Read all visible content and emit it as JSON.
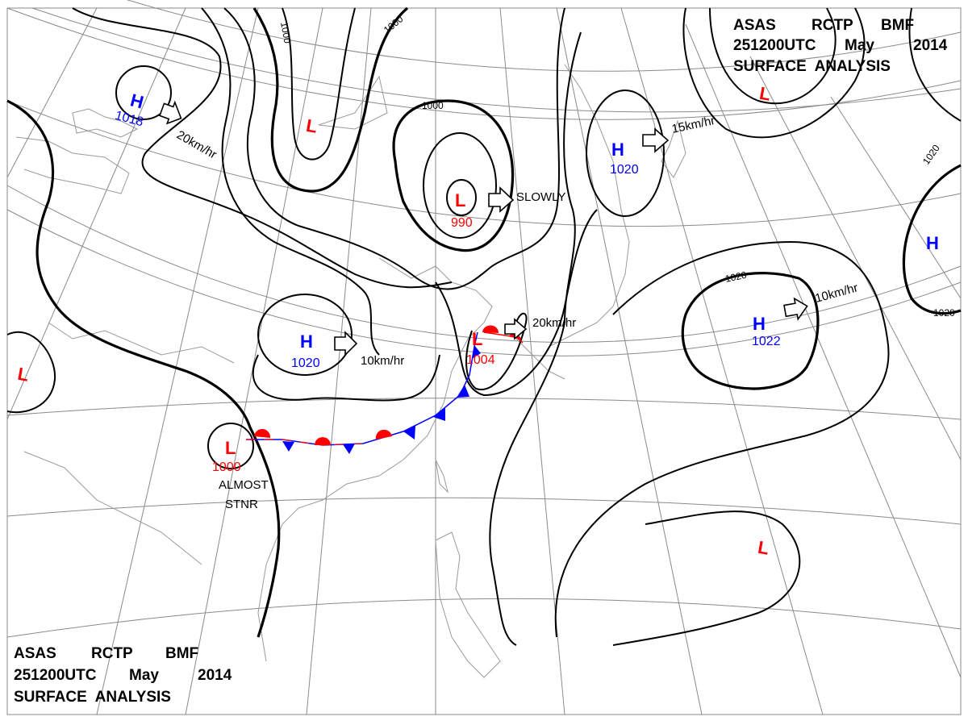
{
  "header_top_right": {
    "line1": [
      "ASAS",
      "RCTP",
      "BMF"
    ],
    "line2": [
      "251200UTC",
      "May",
      "2014"
    ],
    "line3": "SURFACE  ANALYSIS"
  },
  "header_bottom_left": {
    "line1": [
      "ASAS",
      "RCTP",
      "BMF"
    ],
    "line2": [
      "251200UTC",
      "May",
      "2014"
    ],
    "line3": "SURFACE  ANALYSIS"
  },
  "colors": {
    "high": "#0000ff",
    "low": "#ff0000",
    "isobar": "#000000",
    "grid": "#8a8a8a",
    "cold_front": "#0000ff",
    "warm_front": "#ff0000"
  },
  "pressure_centers": [
    {
      "type": "H",
      "value": "1018"
    },
    {
      "type": "L",
      "value": ""
    },
    {
      "type": "L",
      "value": "990"
    },
    {
      "type": "H",
      "value": "1020"
    },
    {
      "type": "L",
      "value": ""
    },
    {
      "type": "H",
      "value": "1020"
    },
    {
      "type": "L",
      "value": "1004"
    },
    {
      "type": "L",
      "value": "1000"
    },
    {
      "type": "L",
      "value": ""
    },
    {
      "type": "H",
      "value": "1022"
    },
    {
      "type": "H",
      "value": ""
    },
    {
      "type": "L",
      "value": ""
    }
  ],
  "motions": [
    "20km/hr",
    "SLOWLY",
    "15km/hr",
    "10km/hr",
    "20km/hr",
    "10km/hr"
  ],
  "annotations": {
    "almost": "ALMOST",
    "stnr": "STNR"
  },
  "isobar_labels": [
    "1000",
    "1000",
    "1000",
    "1020",
    "1020",
    "1020"
  ]
}
